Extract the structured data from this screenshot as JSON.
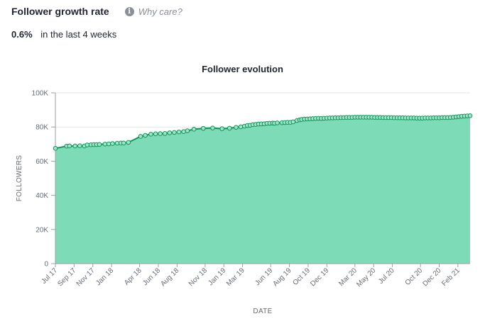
{
  "header": {
    "title": "Follower growth rate",
    "why_care_label": "Why care?",
    "info_icon": "info-icon"
  },
  "growth": {
    "rate": "0.6%",
    "period_text": "in the last 4 weeks"
  },
  "chart_data": {
    "type": "area",
    "title": "Follower evolution",
    "xlabel": "DATE",
    "ylabel": "FOLLOWERS",
    "ylim": [
      0,
      100000
    ],
    "y_ticks": [
      0,
      20000,
      40000,
      60000,
      80000,
      100000
    ],
    "y_tick_labels": [
      "0",
      "20K",
      "40K",
      "60K",
      "80K",
      "100K"
    ],
    "x_tick_labels": [
      "Jul 17",
      "Sep 17",
      "Nov 17",
      "Jan 18",
      "Apr 18",
      "Jun 18",
      "Aug 18",
      "Nov 18",
      "Jan 19",
      "Mar 19",
      "Jun 19",
      "Aug 19",
      "Oct 19",
      "Dec 19",
      "Mar 20",
      "May 20",
      "Jul 20",
      "Oct 20",
      "Dec 20",
      "Feb 21"
    ],
    "x_tick_positions": [
      0,
      2,
      4,
      6,
      9,
      11,
      13,
      16,
      18,
      20,
      23,
      25,
      27,
      29,
      32,
      34,
      36,
      39,
      41,
      43
    ],
    "x_range": [
      0,
      44.3
    ],
    "grid": true,
    "line_color": "#12935c",
    "fill_color": "#7edbb8",
    "series": [
      {
        "x": [
          0,
          1.2,
          1.5,
          2.1,
          2.6,
          3.1,
          3.4,
          3.8,
          4.1,
          4.4,
          4.7,
          5.3,
          5.7,
          6.1,
          6.6,
          7,
          7.3,
          7.8,
          9.1,
          9.6,
          10.2,
          10.7,
          11.2,
          11.7,
          12.2,
          12.7,
          13.2,
          13.7,
          14.1,
          14.8,
          15.8,
          16.8,
          17.8,
          18.6,
          19.3,
          19.8,
          20.2,
          20.5,
          20.8,
          21.1,
          21.4,
          21.7,
          22,
          22.3,
          22.6,
          22.9,
          23.2,
          23.4,
          23.7,
          24.2,
          24.5,
          24.8,
          25.1,
          25.4,
          25.8,
          26.1,
          26.3,
          26.6,
          26.9,
          27.2,
          27.5,
          27.8,
          28.1,
          28.4,
          28.7,
          29,
          29.3,
          29.6,
          29.9,
          30.2,
          30.5,
          30.8,
          31.1,
          31.4,
          31.7,
          32,
          32.3,
          32.6,
          32.9,
          33.2,
          33.5,
          33.8,
          34.1,
          34.4,
          34.7,
          35,
          35.3,
          35.6,
          35.9,
          36.2,
          36.5,
          36.8,
          37.1,
          37.4,
          37.7,
          38,
          38.3,
          38.6,
          38.9,
          39.2,
          39.5,
          39.8,
          40.1,
          40.4,
          40.7,
          41,
          41.3,
          41.6,
          41.9,
          42.2,
          42.5,
          42.8,
          43.1,
          43.4,
          43.7,
          44.0,
          44.3
        ],
        "values": [
          67500,
          68800,
          68900,
          68900,
          69000,
          68900,
          69500,
          69600,
          69700,
          69700,
          69800,
          70000,
          70100,
          70300,
          70500,
          70600,
          70600,
          71000,
          74500,
          75100,
          75800,
          76000,
          76100,
          76200,
          76600,
          76800,
          77100,
          77300,
          77800,
          78700,
          79200,
          79400,
          79000,
          79300,
          79800,
          80100,
          80500,
          80900,
          81000,
          81400,
          81500,
          81700,
          81800,
          81900,
          82100,
          82200,
          82300,
          82200,
          82400,
          82500,
          82600,
          82700,
          82700,
          83000,
          83800,
          84200,
          84400,
          84600,
          84700,
          84800,
          84900,
          85000,
          85100,
          85000,
          85100,
          85200,
          85300,
          85300,
          85400,
          85400,
          85500,
          85500,
          85600,
          85600,
          85600,
          85700,
          85700,
          85700,
          85700,
          85700,
          85700,
          85700,
          85600,
          85600,
          85600,
          85500,
          85500,
          85500,
          85500,
          85400,
          85400,
          85400,
          85400,
          85300,
          85300,
          85300,
          85300,
          85200,
          85200,
          85200,
          85300,
          85300,
          85300,
          85400,
          85400,
          85400,
          85500,
          85500,
          85500,
          85600,
          85700,
          85900,
          86100,
          86300,
          86400,
          86500,
          86600
        ]
      }
    ]
  }
}
